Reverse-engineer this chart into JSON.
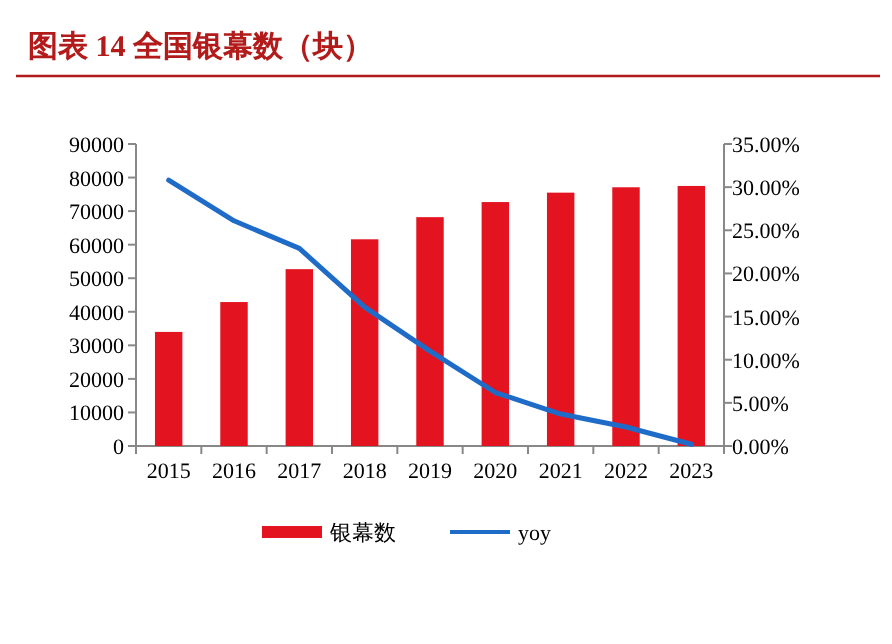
{
  "chart_data": {
    "type": "bar",
    "title": "图表 14 全国银幕数（块）",
    "categories": [
      "2015",
      "2016",
      "2017",
      "2018",
      "2019",
      "2020",
      "2021",
      "2022",
      "2023"
    ],
    "series": [
      {
        "name": "银幕数",
        "color": "#e3141f",
        "values": [
          34000,
          42900,
          52700,
          61600,
          68200,
          72700,
          75500,
          77100,
          77500
        ]
      },
      {
        "name": "yoy",
        "type": "line",
        "axis": "y2",
        "color": "#1f6cc8",
        "values": [
          30.8,
          26.1,
          22.9,
          16.1,
          11.0,
          6.2,
          3.7,
          2.2,
          0.2
        ]
      }
    ],
    "ylim": [
      0,
      90000
    ],
    "yticks": [
      0,
      10000,
      20000,
      30000,
      40000,
      50000,
      60000,
      70000,
      80000,
      90000
    ],
    "y2lim": [
      0,
      35
    ],
    "y2ticks": [
      {
        "value": 0,
        "label": "0.00%"
      },
      {
        "value": 5,
        "label": "5.00%"
      },
      {
        "value": 10,
        "label": "10.00%"
      },
      {
        "value": 15,
        "label": "15.00%"
      },
      {
        "value": 20,
        "label": "20.00%"
      },
      {
        "value": 25,
        "label": "25.00%"
      },
      {
        "value": 30,
        "label": "30.00%"
      },
      {
        "value": 35,
        "label": "35.00%"
      }
    ],
    "grid": false,
    "legend": "bottom",
    "marker": "none",
    "line_style": "solid"
  }
}
